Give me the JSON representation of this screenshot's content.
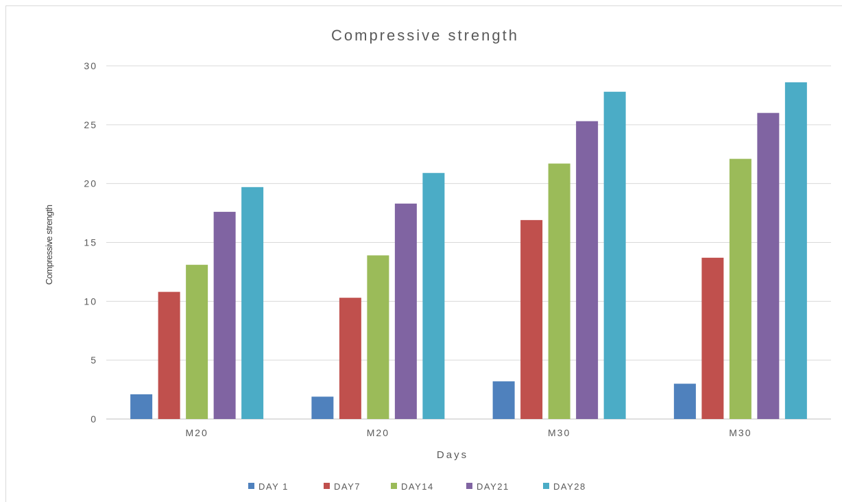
{
  "chart_data": {
    "type": "bar",
    "title": "Compressive strength",
    "xlabel": "Days",
    "ylabel": "Compressive strength",
    "categories": [
      "M20",
      "M20",
      "M30",
      "M30"
    ],
    "ylim": [
      0,
      30
    ],
    "yticks": [
      0,
      5,
      10,
      15,
      20,
      25,
      30
    ],
    "grid": true,
    "legend_position": "bottom",
    "series": [
      {
        "name": "DAY 1",
        "color": "#4F81BD",
        "values": [
          2.1,
          1.9,
          3.2,
          3.0
        ]
      },
      {
        "name": "DAY7",
        "color": "#C0504D",
        "values": [
          10.8,
          10.3,
          16.9,
          13.7
        ]
      },
      {
        "name": "DAY14",
        "color": "#9BBB59",
        "values": [
          13.1,
          13.9,
          21.7,
          22.1
        ]
      },
      {
        "name": "DAY21",
        "color": "#8064A2",
        "values": [
          17.6,
          18.3,
          25.3,
          26.0
        ]
      },
      {
        "name": "DAY28",
        "color": "#4BACC6",
        "values": [
          19.7,
          20.9,
          27.8,
          28.6
        ]
      }
    ]
  }
}
